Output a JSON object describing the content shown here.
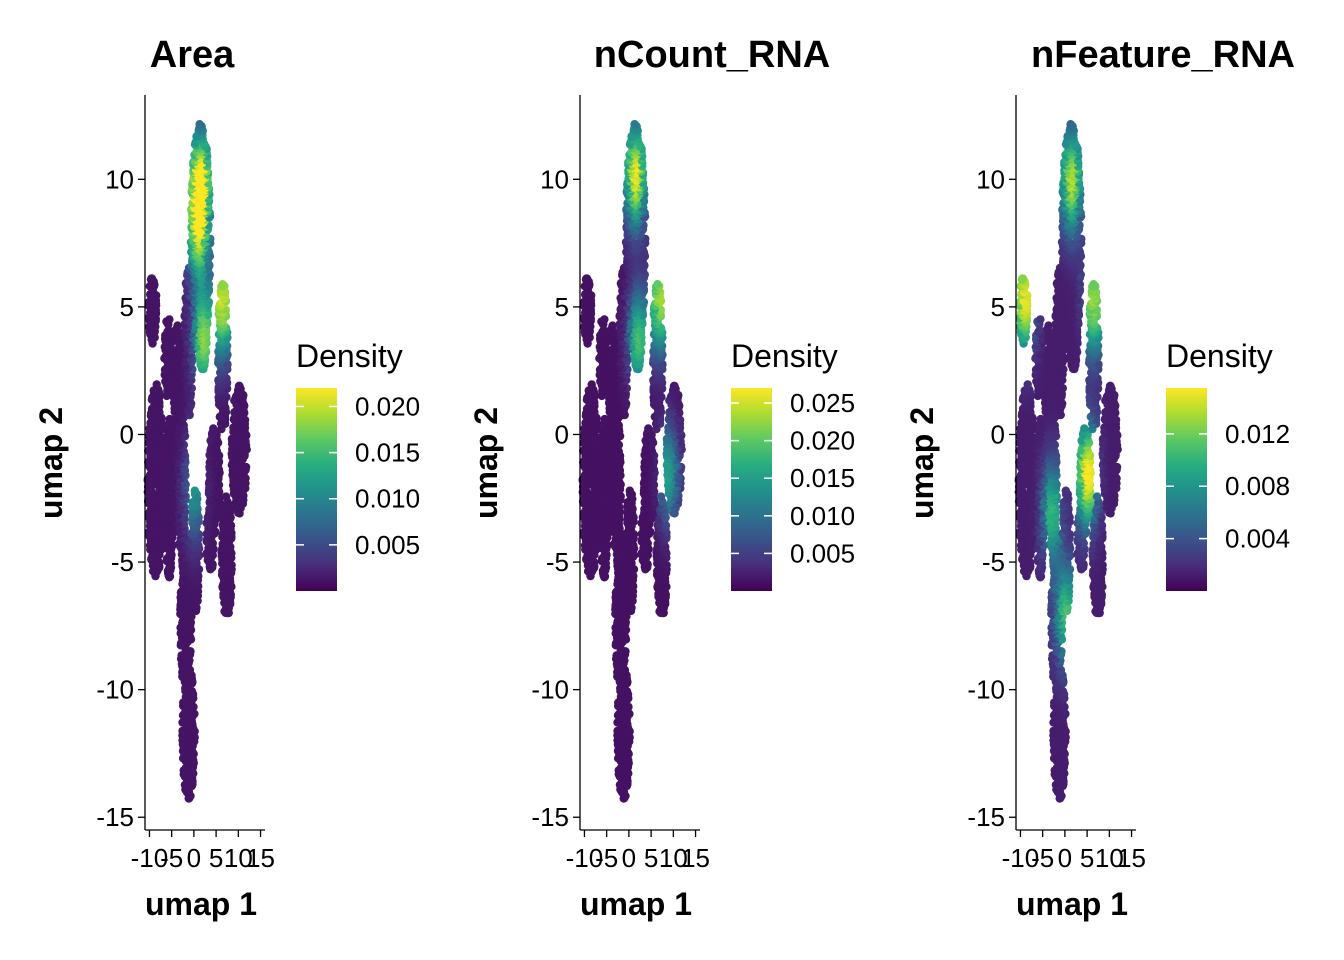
{
  "chart_data": [
    {
      "type": "scatter",
      "title": "Area",
      "xlabel": "umap 1",
      "ylabel": "umap 2",
      "xlim": [
        -11,
        16
      ],
      "ylim": [
        -15.5,
        13.5
      ],
      "x_ticks": [
        -10,
        -5,
        0,
        5,
        10,
        15
      ],
      "x_tick_labels": [
        "-10",
        "-5",
        "0",
        "5",
        "10",
        "15"
      ],
      "y_ticks": [
        -15,
        -10,
        -5,
        0,
        5,
        10
      ],
      "y_tick_labels": [
        "-15",
        "-10",
        "-5",
        "0",
        "5",
        "10"
      ],
      "color_scale": "viridis",
      "legend": {
        "title": "Density",
        "position": "right",
        "range": [
          0.0,
          0.022
        ],
        "ticks": [
          0.005,
          0.01,
          0.015,
          0.02
        ],
        "tick_labels": [
          "0.005",
          "0.010",
          "0.015",
          "0.020"
        ]
      },
      "hotspots": [
        {
          "x": 1.5,
          "y": 10.0,
          "value": 0.021
        },
        {
          "x": 1.0,
          "y": 8.0,
          "value": 0.016
        },
        {
          "x": 6.5,
          "y": 5.2,
          "value": 0.019
        },
        {
          "x": 2.0,
          "y": 3.8,
          "value": 0.017
        },
        {
          "x": 0.0,
          "y": -2.0,
          "value": 0.01
        }
      ]
    },
    {
      "type": "scatter",
      "title": "nCount_RNA",
      "xlabel": "umap 1",
      "ylabel": "umap 2",
      "xlim": [
        -11,
        16
      ],
      "ylim": [
        -15.5,
        13.5
      ],
      "x_ticks": [
        -10,
        -5,
        0,
        5,
        10,
        15
      ],
      "x_tick_labels": [
        "-10",
        "-5",
        "0",
        "5",
        "10",
        "15"
      ],
      "y_ticks": [
        -15,
        -10,
        -5,
        0,
        5,
        10
      ],
      "y_tick_labels": [
        "-15",
        "-10",
        "-5",
        "0",
        "5",
        "10"
      ],
      "color_scale": "viridis",
      "legend": {
        "title": "Density",
        "position": "right",
        "range": [
          0.0,
          0.027
        ],
        "ticks": [
          0.005,
          0.01,
          0.015,
          0.02,
          0.025
        ],
        "tick_labels": [
          "0.005",
          "0.010",
          "0.015",
          "0.020",
          "0.025"
        ]
      },
      "hotspots": [
        {
          "x": 1.5,
          "y": 10.2,
          "value": 0.026
        },
        {
          "x": 7.0,
          "y": 5.3,
          "value": 0.022
        },
        {
          "x": 2.0,
          "y": 3.8,
          "value": 0.018
        },
        {
          "x": 9.0,
          "y": -1.5,
          "value": 0.014
        }
      ]
    },
    {
      "type": "scatter",
      "title": "nFeature_RNA",
      "xlabel": "umap 1",
      "ylabel": "umap 2",
      "xlim": [
        -11,
        16
      ],
      "ylim": [
        -15.5,
        13.5
      ],
      "x_ticks": [
        -10,
        -5,
        0,
        5,
        10,
        15
      ],
      "x_tick_labels": [
        "-10",
        "-5",
        "0",
        "5",
        "10",
        "15"
      ],
      "y_ticks": [
        -15,
        -10,
        -5,
        0,
        5,
        10
      ],
      "y_tick_labels": [
        "-15",
        "-10",
        "-5",
        "0",
        "5",
        "10"
      ],
      "color_scale": "viridis",
      "legend": {
        "title": "Density",
        "position": "right",
        "range": [
          0.0,
          0.0155
        ],
        "ticks": [
          0.004,
          0.008,
          0.012
        ],
        "tick_labels": [
          "0.004",
          "0.008",
          "0.012"
        ]
      },
      "hotspots": [
        {
          "x": 1.5,
          "y": 10.0,
          "value": 0.013
        },
        {
          "x": -9.0,
          "y": 5.3,
          "value": 0.014
        },
        {
          "x": 6.5,
          "y": 5.2,
          "value": 0.012
        },
        {
          "x": 5.0,
          "y": -1.5,
          "value": 0.015
        },
        {
          "x": -3.0,
          "y": -3.0,
          "value": 0.009
        },
        {
          "x": 0.0,
          "y": -7.0,
          "value": 0.01
        }
      ]
    }
  ]
}
